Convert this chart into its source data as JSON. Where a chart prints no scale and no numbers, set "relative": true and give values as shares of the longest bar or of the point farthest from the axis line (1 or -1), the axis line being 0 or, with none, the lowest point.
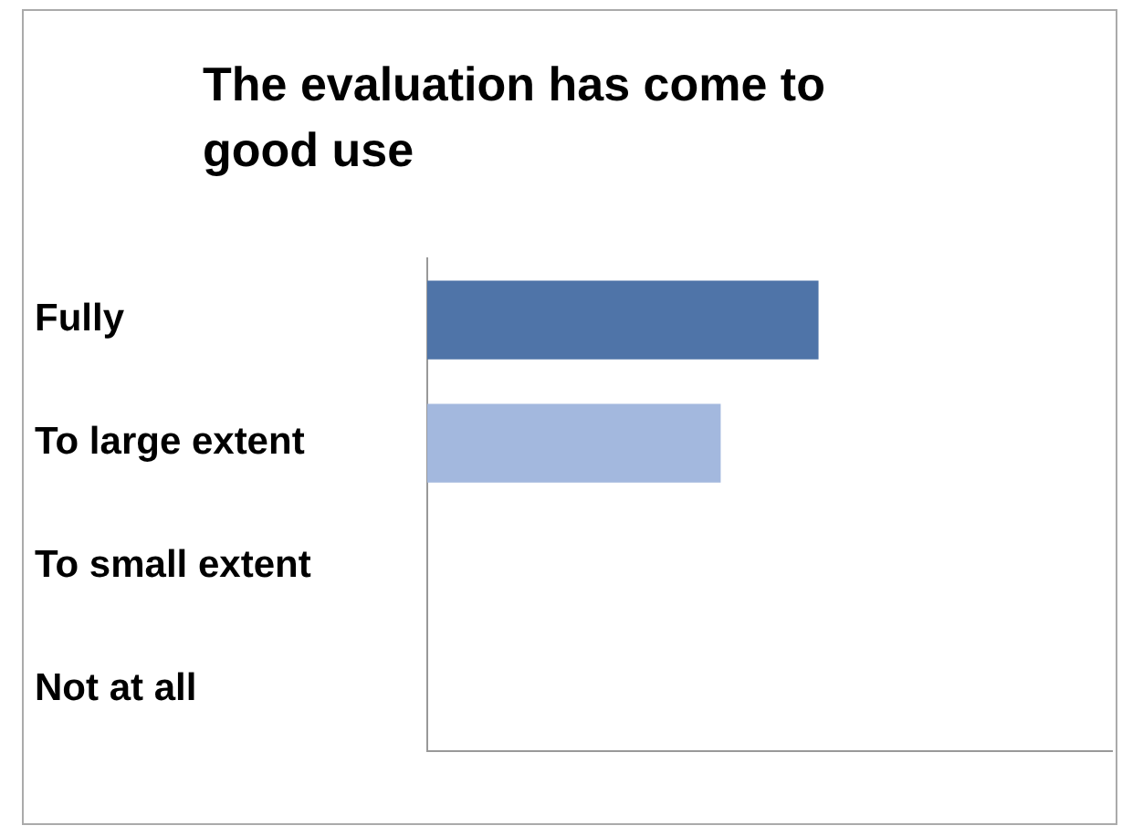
{
  "chart_data": {
    "type": "bar",
    "title": "The evaluation has come to good use",
    "orientation": "horizontal",
    "relative": true,
    "grid": false,
    "legend": false,
    "categories": [
      "Fully",
      "To large extent",
      "To small extent",
      "Not at all"
    ],
    "colors": [
      "#4f74a8",
      "#a3b8de",
      "#ffffff",
      "#ffffff"
    ],
    "values": [
      1,
      0.75,
      0,
      0
    ]
  }
}
